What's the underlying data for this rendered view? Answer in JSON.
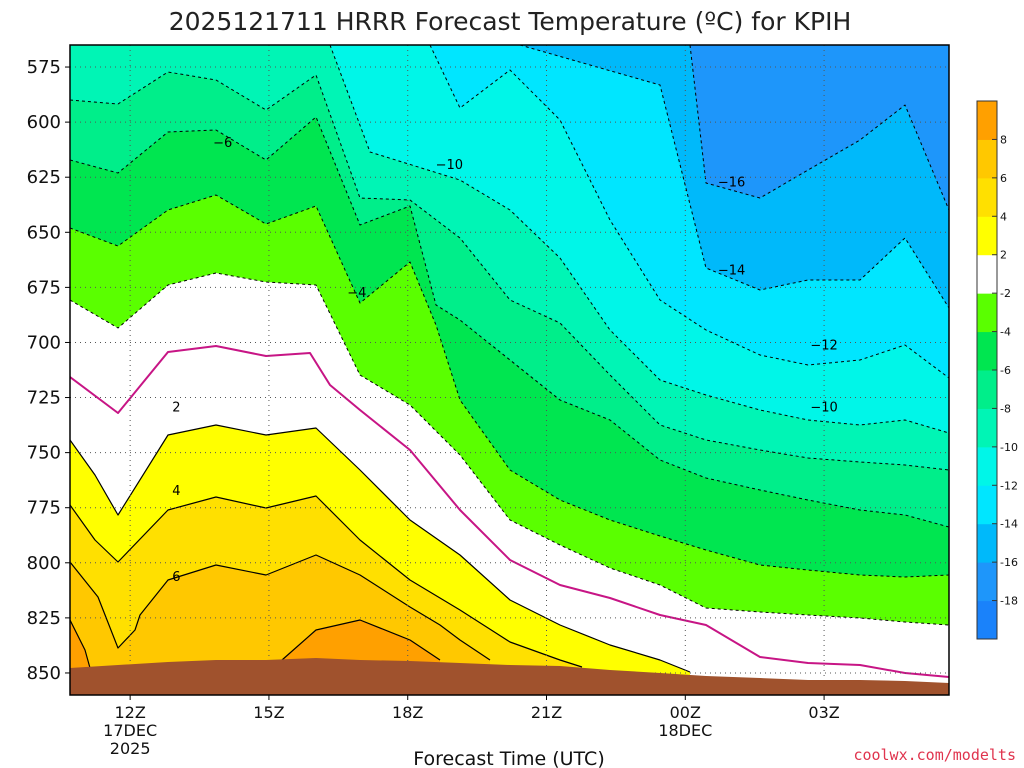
{
  "chart_data": {
    "type": "heatmap",
    "title": "2025121711 HRRR Forecast Temperature (ºC) for KPIH",
    "xlabel": "Forecast Time (UTC)",
    "ylabel": "",
    "credit": "coolwx.com/modelts",
    "y_axis": {
      "ticks": [
        "575",
        "600",
        "625",
        "650",
        "675",
        "700",
        "725",
        "750",
        "775",
        "800",
        "825",
        "850"
      ],
      "range": [
        565,
        860
      ],
      "inverted": true
    },
    "x_axis": {
      "range_hours": [
        10.7,
        29.7
      ],
      "ticks": [
        {
          "hour": 12,
          "lines": [
            "12Z",
            "17DEC",
            "2025"
          ]
        },
        {
          "hour": 15,
          "lines": [
            "15Z"
          ]
        },
        {
          "hour": 18,
          "lines": [
            "18Z"
          ]
        },
        {
          "hour": 21,
          "lines": [
            "21Z"
          ]
        },
        {
          "hour": 24,
          "lines": [
            "00Z",
            "18DEC"
          ]
        },
        {
          "hour": 27,
          "lines": [
            "03Z"
          ]
        }
      ]
    },
    "grid": true,
    "colorbar": {
      "placement": "right",
      "bands": [
        {
          "lo": -20,
          "hi": -18,
          "color": "#1a82fa"
        },
        {
          "lo": -18,
          "hi": -16,
          "color": "#1e96fa"
        },
        {
          "lo": -16,
          "hi": -14,
          "color": "#00b9fa"
        },
        {
          "lo": -14,
          "hi": -12,
          "color": "#00e6ff"
        },
        {
          "lo": -12,
          "hi": -10,
          "color": "#00f6e8"
        },
        {
          "lo": -10,
          "hi": -8,
          "color": "#00f5b5"
        },
        {
          "lo": -8,
          "hi": -6,
          "color": "#00ee8a"
        },
        {
          "lo": -6,
          "hi": -4,
          "color": "#00e650"
        },
        {
          "lo": -4,
          "hi": -2,
          "color": "#5aff00"
        },
        {
          "lo": -2,
          "hi": 2,
          "color": "#ffffff"
        },
        {
          "lo": 2,
          "hi": 4,
          "color": "#ffff00"
        },
        {
          "lo": 4,
          "hi": 6,
          "color": "#ffe000"
        },
        {
          "lo": 6,
          "hi": 8,
          "color": "#ffc800"
        },
        {
          "lo": 8,
          "hi": 10,
          "color": "#ffa000"
        }
      ],
      "tick_labels": [
        "-18",
        "-16",
        "-14",
        "-12",
        "-10",
        "-8",
        "-6",
        "-4",
        "-2",
        "2",
        "4",
        "6",
        "8"
      ]
    },
    "ground_color": "#a0522d",
    "contour_labels": [
      {
        "text": "−6",
        "hour": 14.0,
        "level": 609
      },
      {
        "text": "−10",
        "hour": 18.9,
        "level": 619
      },
      {
        "text": "−16",
        "hour": 25.0,
        "level": 627
      },
      {
        "text": "−14",
        "hour": 25.0,
        "level": 667
      },
      {
        "text": "−4",
        "hour": 16.9,
        "level": 677
      },
      {
        "text": "−12",
        "hour": 27.0,
        "level": 701
      },
      {
        "text": "−10",
        "hour": 27.0,
        "level": 729
      },
      {
        "text": "2",
        "hour": 13.0,
        "level": 729
      },
      {
        "text": "4",
        "hour": 13.0,
        "level": 767
      },
      {
        "text": "6",
        "hour": 13.0,
        "level": 806
      }
    ]
  }
}
